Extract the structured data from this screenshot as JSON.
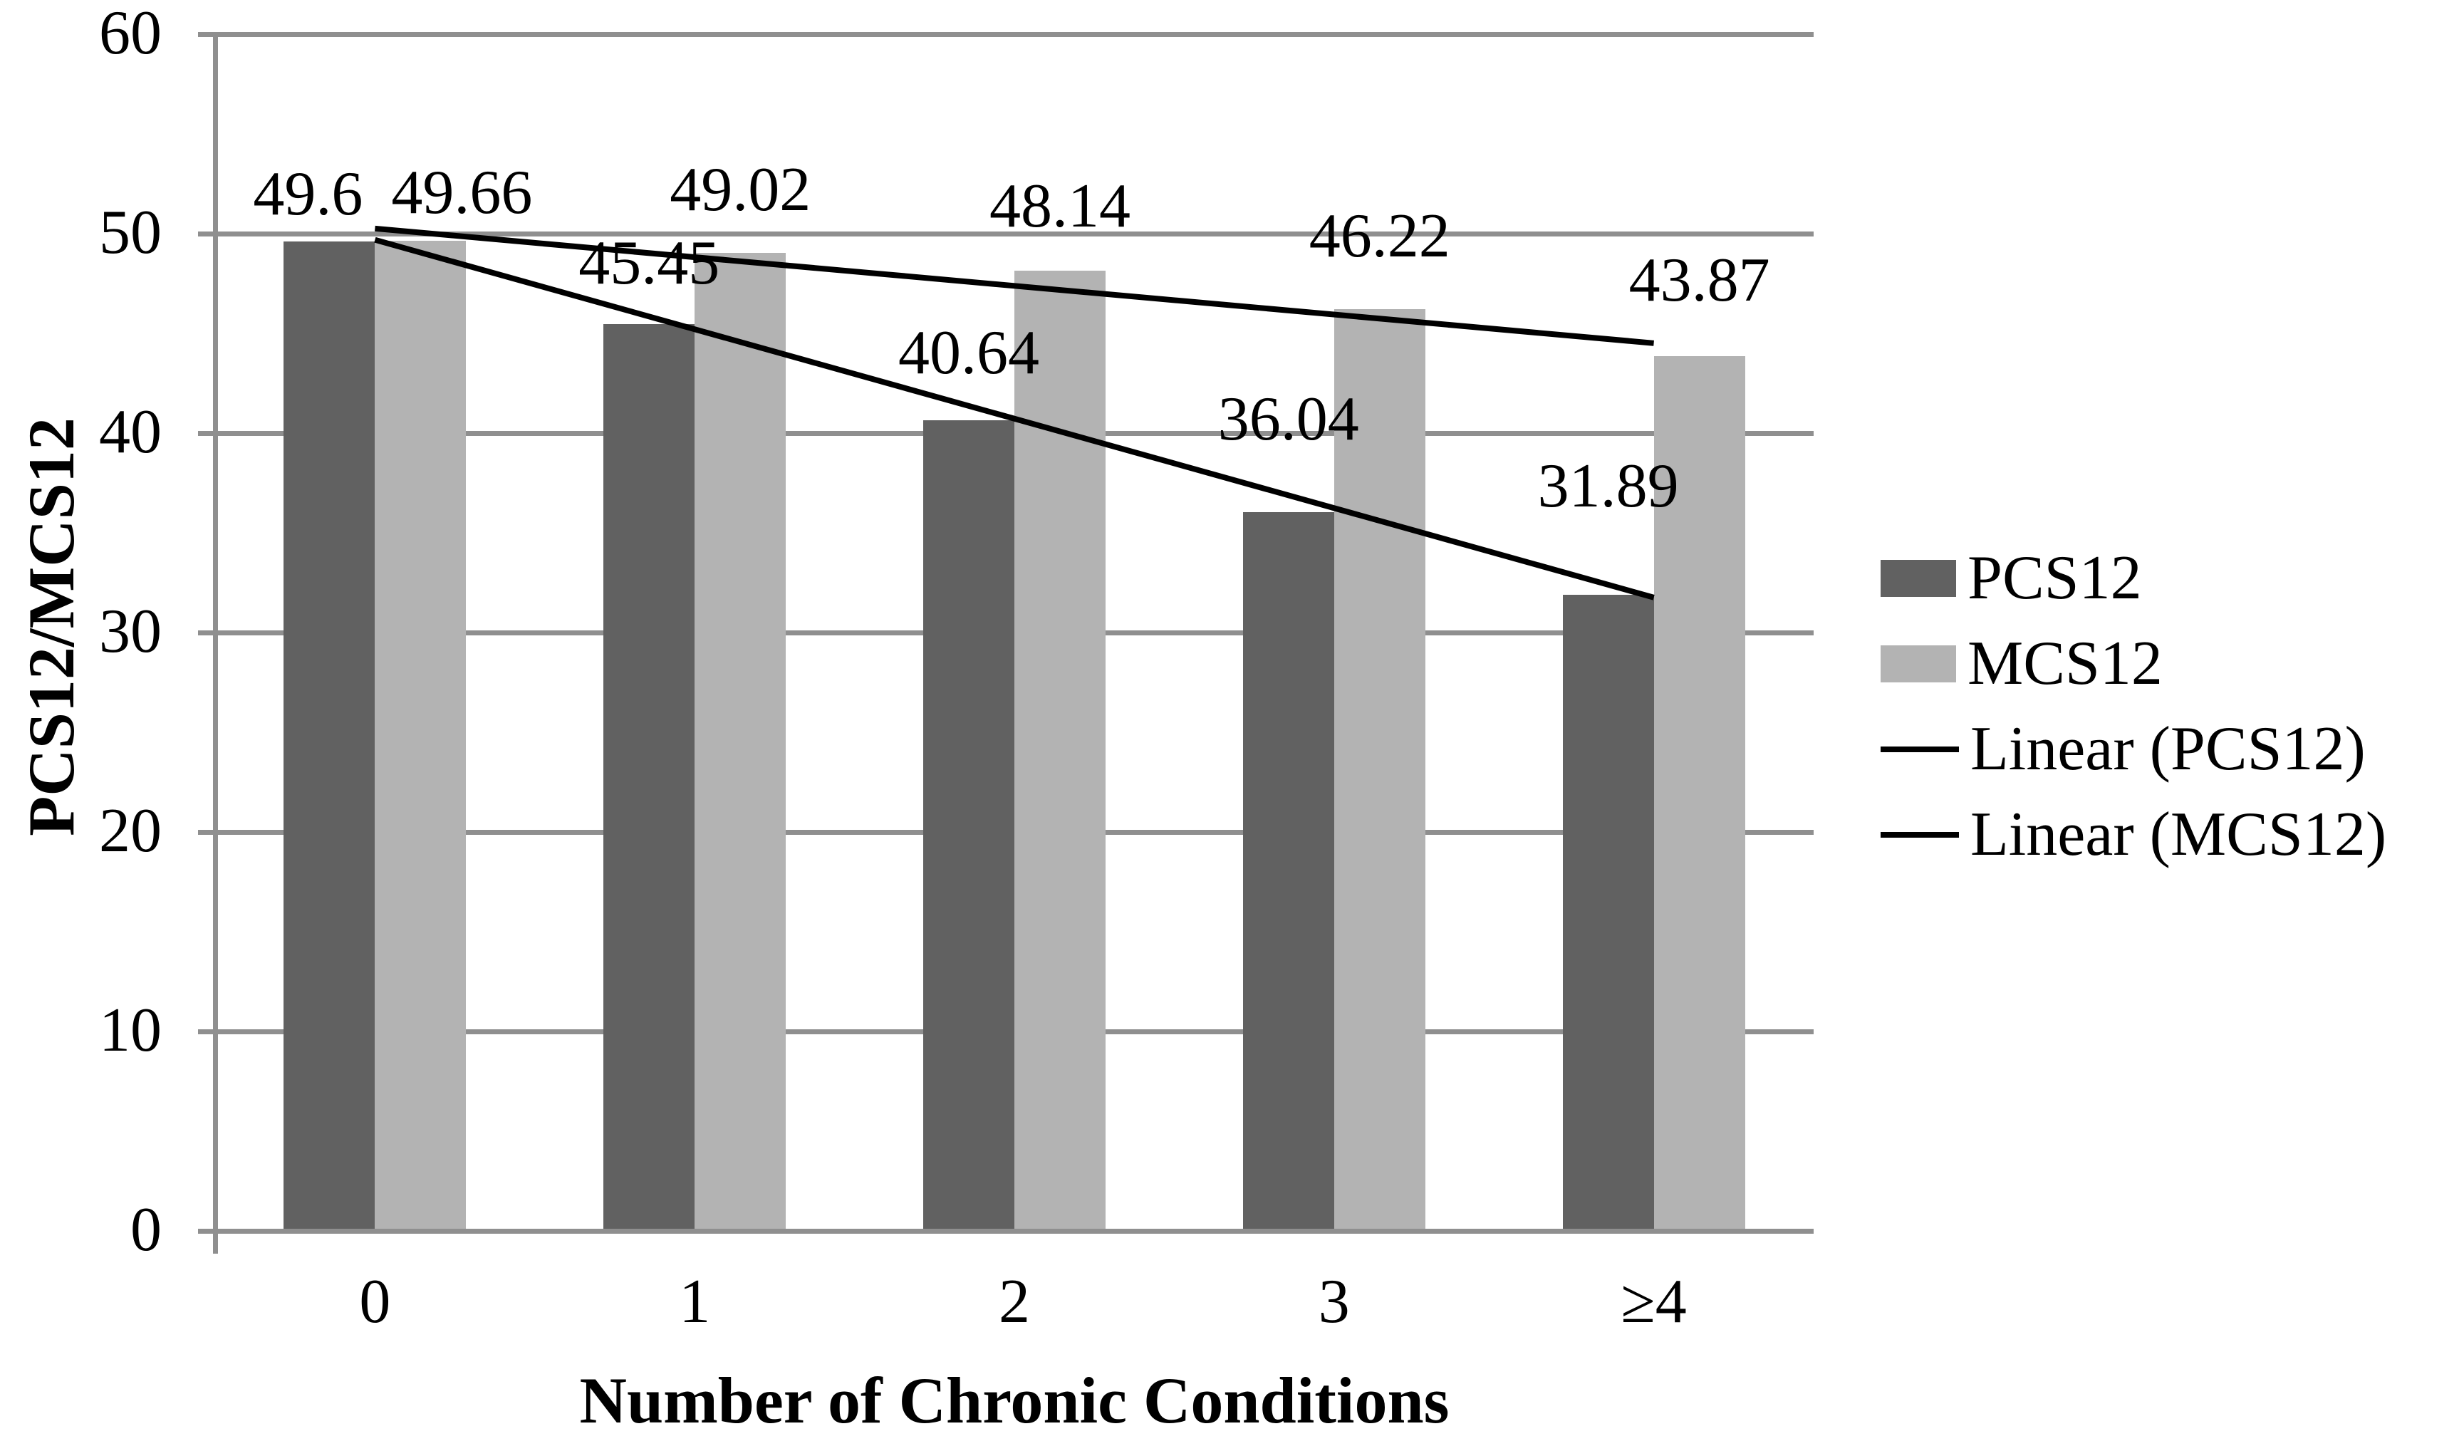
{
  "chart_data": {
    "type": "bar",
    "title": "",
    "xlabel": "Number of Chronic Conditions",
    "ylabel": "PCS12/MCS12",
    "categories": [
      "0",
      "1",
      "2",
      "3",
      "≥4"
    ],
    "series": [
      {
        "name": "PCS12",
        "color": "#616161",
        "values": [
          49.6,
          45.45,
          40.64,
          36.04,
          31.89
        ]
      },
      {
        "name": "MCS12",
        "color": "#b3b3b3",
        "values": [
          49.66,
          49.02,
          48.14,
          46.22,
          43.87
        ]
      }
    ],
    "trendlines": [
      {
        "name": "Linear (PCS12)",
        "series_index": 0,
        "color": "#000000"
      },
      {
        "name": "Linear (MCS12)",
        "series_index": 1,
        "color": "#000000"
      }
    ],
    "data_labels": [
      "49.6",
      "45.45",
      "40.64",
      "36.04",
      "31.89",
      "49.66",
      "49.02",
      "48.14",
      "46.22",
      "43.87"
    ],
    "ylim": [
      0,
      60
    ],
    "ytick_step": 10,
    "yticks": [
      "0",
      "10",
      "20",
      "30",
      "40",
      "50",
      "60"
    ],
    "grid": true,
    "legend_position": "right",
    "axis_color": "#8f8f8f",
    "text_color": "#000000",
    "background_color": "#ffffff"
  }
}
